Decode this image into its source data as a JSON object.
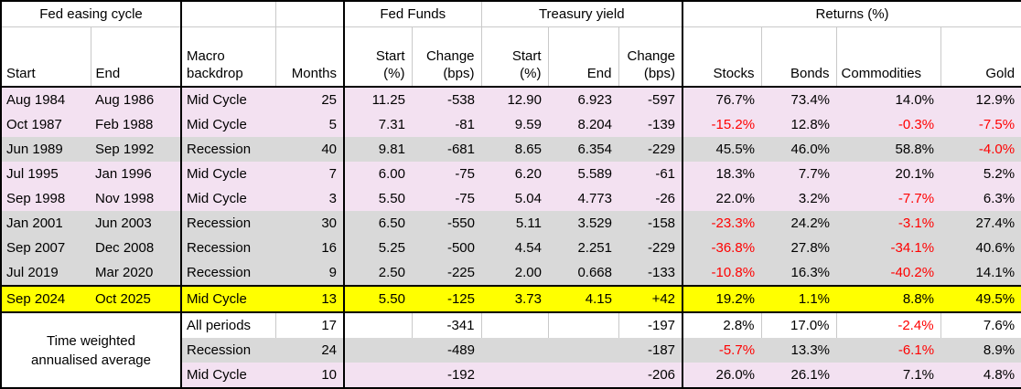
{
  "colors": {
    "pink": "#f3e1f1",
    "gray": "#d9d9d9",
    "yellow": "#ffff00",
    "red": "#ff0000",
    "border": "#000000",
    "grid": "#c9c9c9"
  },
  "table": {
    "groups": {
      "fed_easing_cycle": "Fed easing cycle",
      "fed_funds": "Fed Funds",
      "treasury_yield": "Treasury yield",
      "returns": "Returns (%)"
    },
    "columns": {
      "start": "Start",
      "end": "End",
      "macro": "Macro\nbackdrop",
      "months": "Months",
      "ff_start": "Start\n(%)",
      "ff_change": "Change\n(bps)",
      "ty_start": "Start\n(%)",
      "ty_end": "End",
      "ty_change": "Change\n(bps)",
      "stocks": "Stocks",
      "bonds": "Bonds",
      "commodities": "Commodities",
      "gold": "Gold"
    },
    "rows": [
      {
        "start": "Aug 1984",
        "end": "Aug 1986",
        "macro": "Mid Cycle",
        "months": "25",
        "ff_start": "11.25",
        "ff_change": "-538",
        "ty_start": "12.90",
        "ty_end": "6.923",
        "ty_change": "-597",
        "stocks": "76.7%",
        "bonds": "73.4%",
        "commodities": "14.0%",
        "gold": "12.9%",
        "bg": "pink",
        "red": []
      },
      {
        "start": "Oct 1987",
        "end": "Feb 1988",
        "macro": "Mid Cycle",
        "months": "5",
        "ff_start": "7.31",
        "ff_change": "-81",
        "ty_start": "9.59",
        "ty_end": "8.204",
        "ty_change": "-139",
        "stocks": "-15.2%",
        "bonds": "12.8%",
        "commodities": "-0.3%",
        "gold": "-7.5%",
        "bg": "pink",
        "red": [
          "stocks",
          "commodities",
          "gold"
        ]
      },
      {
        "start": "Jun 1989",
        "end": "Sep 1992",
        "macro": "Recession",
        "months": "40",
        "ff_start": "9.81",
        "ff_change": "-681",
        "ty_start": "8.65",
        "ty_end": "6.354",
        "ty_change": "-229",
        "stocks": "45.5%",
        "bonds": "46.0%",
        "commodities": "58.8%",
        "gold": "-4.0%",
        "bg": "gray",
        "red": [
          "gold"
        ]
      },
      {
        "start": "Jul 1995",
        "end": "Jan 1996",
        "macro": "Mid Cycle",
        "months": "7",
        "ff_start": "6.00",
        "ff_change": "-75",
        "ty_start": "6.20",
        "ty_end": "5.589",
        "ty_change": "-61",
        "stocks": "18.3%",
        "bonds": "7.7%",
        "commodities": "20.1%",
        "gold": "5.2%",
        "bg": "pink",
        "red": []
      },
      {
        "start": "Sep 1998",
        "end": "Nov 1998",
        "macro": "Mid Cycle",
        "months": "3",
        "ff_start": "5.50",
        "ff_change": "-75",
        "ty_start": "5.04",
        "ty_end": "4.773",
        "ty_change": "-26",
        "stocks": "22.0%",
        "bonds": "3.2%",
        "commodities": "-7.7%",
        "gold": "6.3%",
        "bg": "pink",
        "red": [
          "commodities"
        ]
      },
      {
        "start": "Jan 2001",
        "end": "Jun 2003",
        "macro": "Recession",
        "months": "30",
        "ff_start": "6.50",
        "ff_change": "-550",
        "ty_start": "5.11",
        "ty_end": "3.529",
        "ty_change": "-158",
        "stocks": "-23.3%",
        "bonds": "24.2%",
        "commodities": "-3.1%",
        "gold": "27.4%",
        "bg": "gray",
        "red": [
          "stocks",
          "commodities"
        ]
      },
      {
        "start": "Sep 2007",
        "end": "Dec 2008",
        "macro": "Recession",
        "months": "16",
        "ff_start": "5.25",
        "ff_change": "-500",
        "ty_start": "4.54",
        "ty_end": "2.251",
        "ty_change": "-229",
        "stocks": "-36.8%",
        "bonds": "27.8%",
        "commodities": "-34.1%",
        "gold": "40.6%",
        "bg": "gray",
        "red": [
          "stocks",
          "commodities"
        ]
      },
      {
        "start": "Jul 2019",
        "end": "Mar 2020",
        "macro": "Recession",
        "months": "9",
        "ff_start": "2.50",
        "ff_change": "-225",
        "ty_start": "2.00",
        "ty_end": "0.668",
        "ty_change": "-133",
        "stocks": "-10.8%",
        "bonds": "16.3%",
        "commodities": "-40.2%",
        "gold": "14.1%",
        "bg": "gray",
        "red": [
          "stocks",
          "commodities"
        ]
      },
      {
        "start": "Sep 2024",
        "end": "Oct 2025",
        "macro": "Mid Cycle",
        "months": "13",
        "ff_start": "5.50",
        "ff_change": "-125",
        "ty_start": "3.73",
        "ty_end": "4.15",
        "ty_change": "+42",
        "stocks": "19.2%",
        "bonds": "1.1%",
        "commodities": "8.8%",
        "gold": "49.5%",
        "bg": "yellow",
        "red": []
      }
    ],
    "summary": {
      "label": "Time weighted\nannualised average",
      "rows": [
        {
          "macro": "All periods",
          "months": "17",
          "ff_start": "",
          "ff_change": "-341",
          "ty_start": "",
          "ty_end": "",
          "ty_change": "-197",
          "stocks": "2.8%",
          "bonds": "17.0%",
          "commodities": "-2.4%",
          "gold": "7.6%",
          "bg": "white",
          "red": [
            "commodities"
          ]
        },
        {
          "macro": "Recession",
          "months": "24",
          "ff_start": "",
          "ff_change": "-489",
          "ty_start": "",
          "ty_end": "",
          "ty_change": "-187",
          "stocks": "-5.7%",
          "bonds": "13.3%",
          "commodities": "-6.1%",
          "gold": "8.9%",
          "bg": "gray",
          "red": [
            "stocks",
            "commodities"
          ]
        },
        {
          "macro": "Mid Cycle",
          "months": "10",
          "ff_start": "",
          "ff_change": "-192",
          "ty_start": "",
          "ty_end": "",
          "ty_change": "-206",
          "stocks": "26.0%",
          "bonds": "26.1%",
          "commodities": "7.1%",
          "gold": "4.8%",
          "bg": "pink",
          "red": []
        }
      ]
    }
  }
}
